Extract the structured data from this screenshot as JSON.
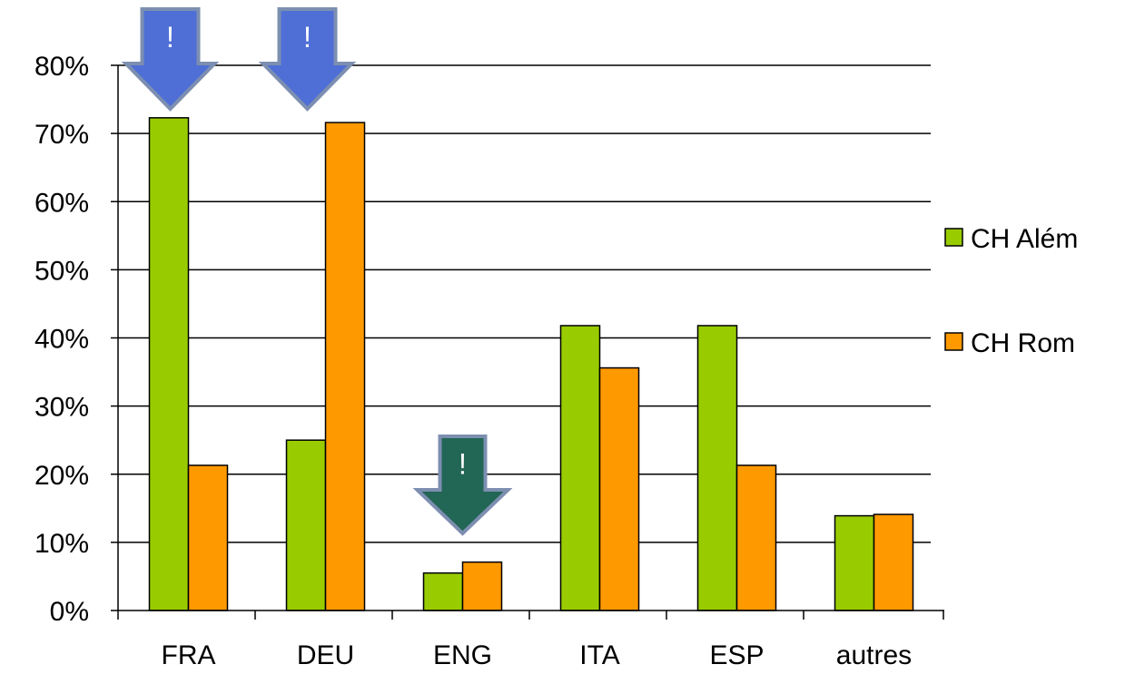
{
  "chart_data": {
    "type": "bar",
    "categories": [
      "FRA",
      "DEU",
      "ENG",
      "ITA",
      "ESP",
      "autres"
    ],
    "series": [
      {
        "name": "CH Além",
        "color": "#99cc00",
        "values": [
          72.3,
          25.0,
          5.5,
          41.8,
          41.8,
          13.9
        ]
      },
      {
        "name": "CH Rom",
        "color": "#ff9900",
        "values": [
          21.3,
          71.6,
          7.1,
          35.6,
          21.3,
          14.1
        ]
      }
    ],
    "ylim": [
      0,
      80
    ],
    "ytick_values": [
      0,
      10,
      20,
      30,
      40,
      50,
      60,
      70,
      80
    ],
    "ytick_labels": [
      "0%",
      "10%",
      "20%",
      "30%",
      "40%",
      "50%",
      "60%",
      "70%",
      "80%"
    ],
    "grid": true,
    "legend_position": "right",
    "annotations": [
      {
        "text": "!",
        "category": "FRA",
        "color": "#4f6fd6",
        "icon": "down-arrow-icon"
      },
      {
        "text": "!",
        "category": "DEU",
        "color": "#4f6fd6",
        "icon": "down-arrow-icon"
      },
      {
        "text": "!",
        "category": "ENG",
        "color": "#226655",
        "icon": "down-arrow-icon"
      }
    ]
  }
}
